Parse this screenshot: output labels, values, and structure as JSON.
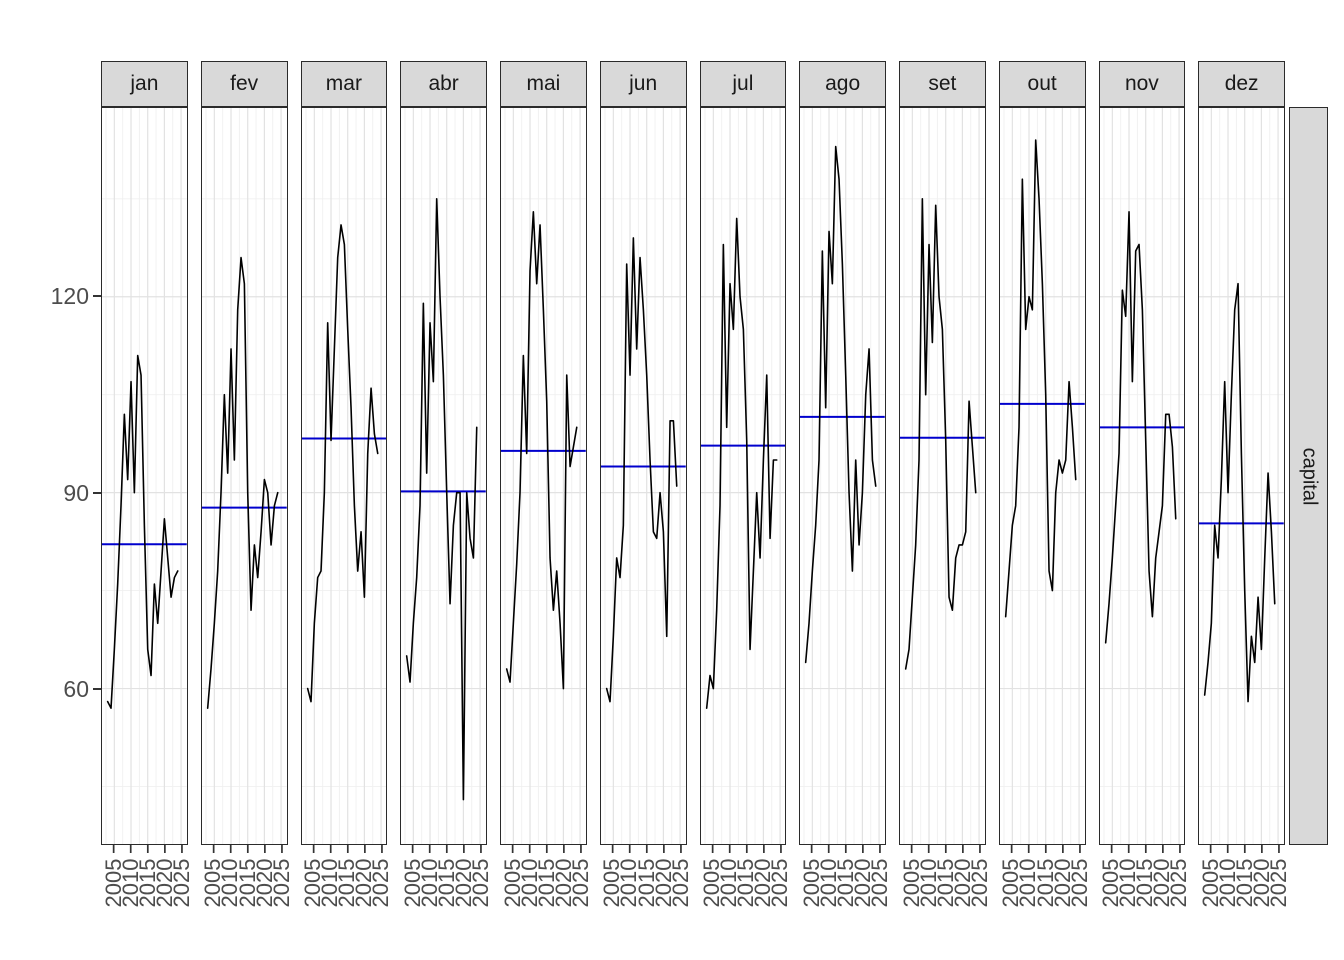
{
  "ui": {
    "right_strip_label": "capital",
    "colors": {
      "mean_line": "#0000CD",
      "series_line": "#000000",
      "strip_bg": "#D9D9D9",
      "strip_border": "#2B2B2B",
      "panel_border": "#2B2B2B",
      "grid_major": "#E2E2E2",
      "grid_minor": "#F0F0F0",
      "axis_text": "#4D4D4D",
      "tick_mark": "#333333",
      "background": "#FFFFFF"
    }
  },
  "chart_data": {
    "type": "line",
    "title": "",
    "xlabel": "",
    "ylabel": "",
    "facet_row_label": "capital",
    "legend": "none",
    "grid": {
      "x_major": [
        2005,
        2010,
        2015,
        2020,
        2025
      ],
      "x_minor": [
        2002.5,
        2007.5,
        2012.5,
        2017.5,
        2022.5
      ],
      "y_major": [
        60,
        90,
        120
      ],
      "y_minor": [
        45,
        75,
        105,
        135
      ]
    },
    "x_ticks": [
      "2005",
      "2010",
      "2015",
      "2020",
      "2025"
    ],
    "x_tick_values": [
      2005,
      2010,
      2015,
      2020,
      2025
    ],
    "y_ticks": [
      "120",
      "90",
      "60"
    ],
    "y_tick_values": [
      120,
      90,
      60
    ],
    "xlim": [
      2001.3,
      2026.7
    ],
    "ylim": [
      36.2,
      148.9
    ],
    "years": [
      2003,
      2004,
      2005,
      2006,
      2007,
      2008,
      2009,
      2010,
      2011,
      2012,
      2013,
      2014,
      2015,
      2016,
      2017,
      2018,
      2019,
      2020,
      2021,
      2022,
      2023,
      2024
    ],
    "facets": [
      {
        "label": "jan",
        "mean": 82.1,
        "values": [
          58,
          57,
          66,
          76,
          88,
          102,
          92,
          107,
          90,
          111,
          108,
          85,
          66,
          62,
          76,
          70,
          78,
          86,
          80,
          74,
          77,
          78
        ]
      },
      {
        "label": "fev",
        "mean": 87.7,
        "values": [
          57,
          63,
          70,
          78,
          90,
          105,
          93,
          112,
          95,
          118,
          126,
          122,
          90,
          72,
          82,
          77,
          84,
          92,
          90,
          82,
          88,
          90
        ]
      },
      {
        "label": "mar",
        "mean": 98.3,
        "values": [
          60,
          58,
          70,
          77,
          78,
          90,
          116,
          98,
          112,
          126,
          131,
          128,
          115,
          103,
          88,
          78,
          84,
          74,
          96,
          106,
          99,
          96
        ]
      },
      {
        "label": "abr",
        "mean": 90.2,
        "values": [
          65,
          61,
          70,
          77,
          88,
          119,
          93,
          116,
          107,
          135,
          120,
          108,
          90,
          73,
          85,
          90,
          90,
          43,
          90,
          83,
          80,
          100
        ]
      },
      {
        "label": "mai",
        "mean": 96.4,
        "values": [
          63,
          61,
          70,
          79,
          90,
          111,
          96,
          124,
          133,
          122,
          131,
          118,
          104,
          80,
          72,
          78,
          70,
          60,
          108,
          94,
          97,
          100
        ]
      },
      {
        "label": "jun",
        "mean": 94.0,
        "values": [
          60,
          58,
          68,
          80,
          77,
          85,
          125,
          108,
          129,
          112,
          126,
          118,
          108,
          95,
          84,
          83,
          90,
          84,
          68,
          101,
          101,
          91
        ]
      },
      {
        "label": "jul",
        "mean": 97.2,
        "values": [
          57,
          62,
          60,
          72,
          88,
          128,
          100,
          122,
          115,
          132,
          120,
          115,
          98,
          66,
          78,
          90,
          80,
          95,
          108,
          83,
          95,
          95
        ]
      },
      {
        "label": "ago",
        "mean": 101.6,
        "values": [
          64,
          70,
          78,
          85,
          95,
          127,
          103,
          130,
          122,
          143,
          138,
          125,
          108,
          90,
          78,
          95,
          82,
          90,
          105,
          112,
          95,
          91
        ]
      },
      {
        "label": "set",
        "mean": 98.4,
        "values": [
          63,
          66,
          74,
          82,
          95,
          135,
          105,
          128,
          113,
          134,
          120,
          115,
          98,
          74,
          72,
          80,
          82,
          82,
          84,
          104,
          97,
          90
        ]
      },
      {
        "label": "out",
        "mean": 103.6,
        "values": [
          71,
          78,
          85,
          88,
          100,
          138,
          115,
          120,
          118,
          144,
          135,
          122,
          105,
          78,
          75,
          90,
          95,
          93,
          95,
          107,
          100,
          92
        ]
      },
      {
        "label": "nov",
        "mean": 100.0,
        "values": [
          67,
          73,
          80,
          88,
          96,
          121,
          117,
          133,
          107,
          127,
          128,
          118,
          98,
          78,
          71,
          80,
          84,
          88,
          102,
          102,
          97,
          86
        ]
      },
      {
        "label": "dez",
        "mean": 85.3,
        "values": [
          59,
          64,
          70,
          85,
          80,
          92,
          107,
          90,
          105,
          118,
          122,
          96,
          75,
          58,
          68,
          64,
          74,
          66,
          80,
          93,
          84,
          73
        ]
      }
    ]
  }
}
